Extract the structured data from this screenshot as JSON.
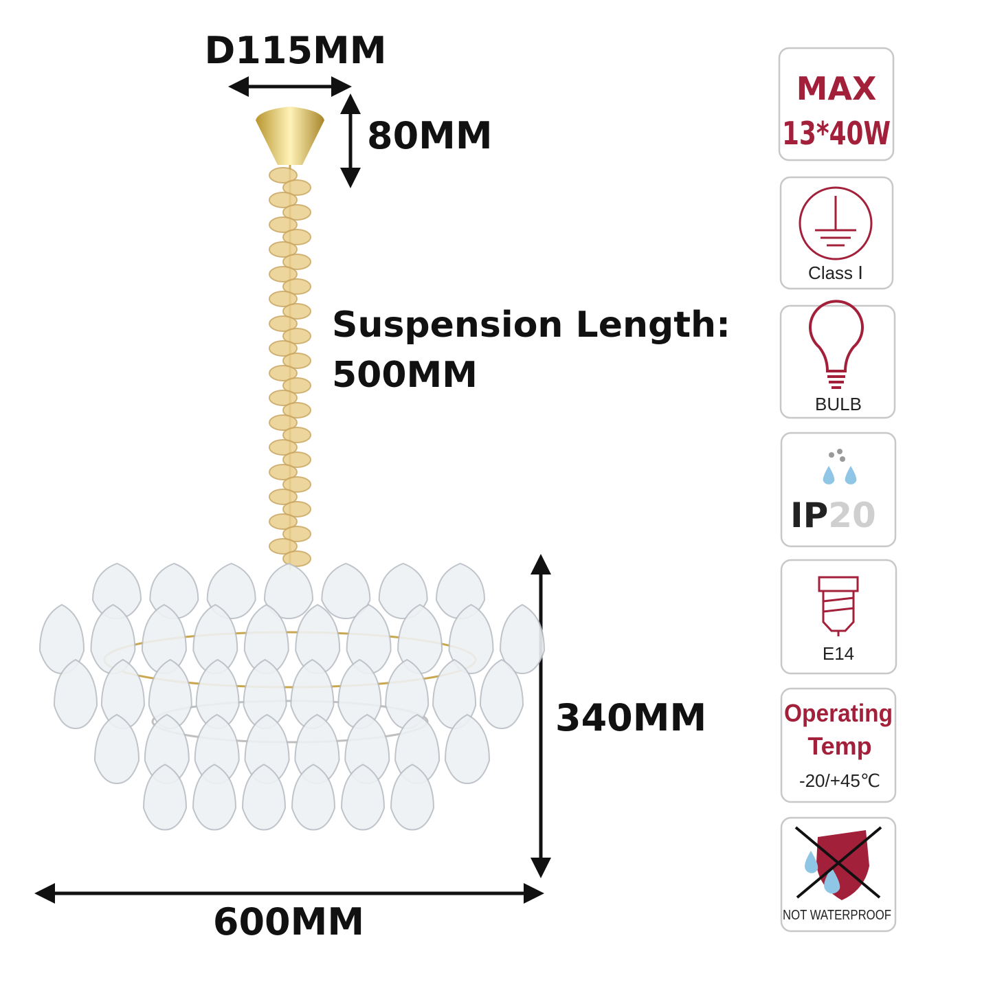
{
  "dimensions": {
    "canopy_diameter": "D115MM",
    "canopy_height": "80MM",
    "suspension_label": "Suspension Length:",
    "suspension_value": "500MM",
    "body_height": "340MM",
    "body_width": "600MM"
  },
  "badges": {
    "max_label": "MAX",
    "max_value": "13*40W",
    "class": "Class Ⅰ",
    "bulb": "BULB",
    "ip_prefix": "IP",
    "ip_digits": "20",
    "socket": "E14",
    "temp_line1": "Operating",
    "temp_line2": "Temp",
    "temp_range": "-20/+45℃",
    "waterproof": "NOT WATERPROOF"
  }
}
